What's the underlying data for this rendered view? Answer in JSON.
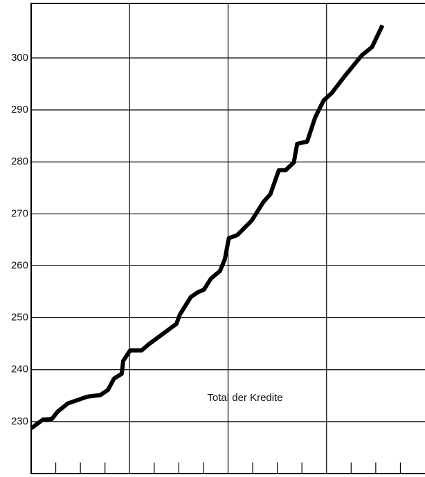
{
  "chart_data": {
    "type": "line",
    "annotation": "Total der Kredite",
    "x": [
      0,
      0.48,
      0.84,
      1.07,
      1.49,
      2.28,
      2.81,
      3.12,
      3.37,
      3.68,
      3.74,
      4.02,
      4.49,
      4.78,
      5.9,
      6.04,
      6.49,
      6.77,
      7.02,
      7.3,
      7.67,
      7.87,
      8.03,
      8.37,
      8.96,
      9.44,
      9.72,
      10.06,
      10.34,
      10.67,
      10.81,
      11.21,
      11.54,
      11.88,
      12.22,
      12.72,
      13.43,
      13.85,
      14.27
    ],
    "values": [
      228.7,
      230.4,
      230.5,
      231.9,
      233.5,
      234.8,
      235.1,
      236.1,
      238.3,
      239.2,
      241.7,
      243.7,
      243.7,
      244.9,
      248.8,
      250.6,
      254.0,
      254.9,
      255.4,
      257.5,
      259.0,
      261.3,
      265.3,
      265.9,
      268.7,
      272.3,
      273.8,
      278.4,
      278.4,
      279.9,
      283.5,
      283.9,
      288.6,
      291.8,
      293.3,
      296.4,
      300.5,
      302.1,
      306.3
    ],
    "color": "#000000",
    "xlim": [
      0,
      16
    ],
    "xticks": [
      4,
      8,
      12
    ],
    "xminor_ticks": [
      1,
      2,
      3,
      5,
      6,
      7,
      9,
      10,
      11,
      13,
      14,
      15
    ],
    "ylim": [
      220,
      310.5
    ],
    "yticks": [
      230,
      240,
      250,
      260,
      270,
      280,
      290,
      300
    ],
    "grid": true
  }
}
